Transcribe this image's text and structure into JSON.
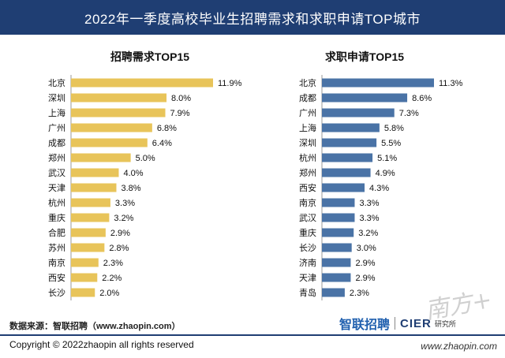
{
  "header": {
    "title": "2022年一季度高校毕业生招聘需求和求职申请TOP城市"
  },
  "colors": {
    "header_bg": "#1f3e73",
    "bar_left": "#e8c45a",
    "bar_right": "#4a73a6"
  },
  "chart_data": [
    {
      "type": "bar",
      "orientation": "horizontal",
      "title": "招聘需求TOP15",
      "categories": [
        "北京",
        "深圳",
        "上海",
        "广州",
        "成都",
        "郑州",
        "武汉",
        "天津",
        "杭州",
        "重庆",
        "合肥",
        "苏州",
        "南京",
        "西安",
        "长沙"
      ],
      "values": [
        11.9,
        8.0,
        7.9,
        6.8,
        6.4,
        5.0,
        4.0,
        3.8,
        3.3,
        3.2,
        2.9,
        2.8,
        2.3,
        2.2,
        2.0
      ],
      "labels": [
        "11.9%",
        "8.0%",
        "7.9%",
        "6.8%",
        "6.4%",
        "5.0%",
        "4.0%",
        "3.8%",
        "3.3%",
        "3.2%",
        "2.9%",
        "2.8%",
        "2.3%",
        "2.2%",
        "2.0%"
      ],
      "unit": "%",
      "color": "#e8c45a"
    },
    {
      "type": "bar",
      "orientation": "horizontal",
      "title": "求职申请TOP15",
      "categories": [
        "北京",
        "成都",
        "广州",
        "上海",
        "深圳",
        "杭州",
        "郑州",
        "西安",
        "南京",
        "武汉",
        "重庆",
        "长沙",
        "济南",
        "天津",
        "青岛"
      ],
      "values": [
        11.3,
        8.6,
        7.3,
        5.8,
        5.5,
        5.1,
        4.9,
        4.3,
        3.3,
        3.3,
        3.2,
        3.0,
        2.9,
        2.9,
        2.3
      ],
      "labels": [
        "11.3%",
        "8.6%",
        "7.3%",
        "5.8%",
        "5.5%",
        "5.1%",
        "4.9%",
        "4.3%",
        "3.3%",
        "3.3%",
        "3.2%",
        "3.0%",
        "2.9%",
        "2.9%",
        "2.3%"
      ],
      "unit": "%",
      "color": "#4a73a6"
    }
  ],
  "footer": {
    "source": "数据来源：智联招聘（www.zhaopin.com）",
    "logo_zhilian": "智联招聘",
    "logo_cier": "CIER",
    "logo_institute": "研究所",
    "copyright": "Copyright ©  2022zhaopin all rights reserved",
    "site": "www.zhaopin.com",
    "watermark": "南方+"
  }
}
